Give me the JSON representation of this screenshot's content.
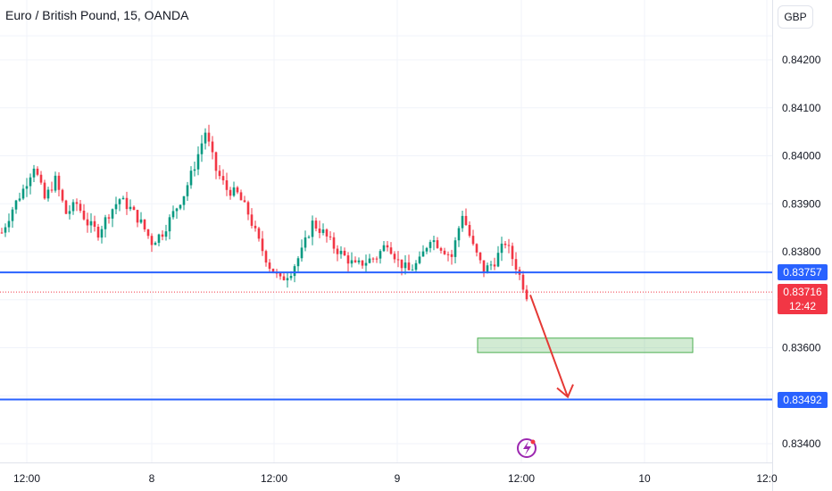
{
  "header": {
    "title": "Euro / British Pound, 15, OANDA",
    "currency": "GBP"
  },
  "chart_data": {
    "type": "candlestick",
    "y_tick_labels": [
      "0.84200",
      "0.84100",
      "0.84000",
      "0.83900",
      "0.83800",
      "0.83600",
      "0.83400"
    ],
    "y_ticks": [
      0.842,
      0.841,
      0.84,
      0.839,
      0.838,
      0.836,
      0.834
    ],
    "x_tick_labels": [
      "12:00",
      "8",
      "12:00",
      "9",
      "12:00",
      "10",
      "12:0"
    ],
    "ylim": [
      0.833,
      0.843
    ],
    "price_path": [
      0.8384,
      0.8389,
      0.8393,
      0.8398,
      0.8391,
      0.8395,
      0.8388,
      0.839,
      0.8386,
      0.8384,
      0.8388,
      0.8391,
      0.8389,
      0.8386,
      0.8382,
      0.8384,
      0.8388,
      0.8392,
      0.8398,
      0.8405,
      0.8397,
      0.8393,
      0.8392,
      0.8388,
      0.8382,
      0.8377,
      0.8374,
      0.8376,
      0.838,
      0.8386,
      0.8384,
      0.8381,
      0.8379,
      0.8377,
      0.8378,
      0.8379,
      0.8382,
      0.8378,
      0.8376,
      0.8378,
      0.8383,
      0.8381,
      0.8379,
      0.8388,
      0.8381,
      0.8376,
      0.8378,
      0.8382,
      0.8377,
      0.8371
    ],
    "levels": [
      {
        "value": "0.83757",
        "color": "#2962ff"
      },
      {
        "value": "0.83492",
        "color": "#2962ff"
      }
    ],
    "current_price": {
      "value": "0.83716",
      "countdown": "12:42",
      "color": "#f23645"
    },
    "target_zone": {
      "low": 0.8359,
      "high": 0.8362,
      "color": "#4caf50"
    },
    "projection_arrow": {
      "from_price": 0.8371,
      "to_price": 0.8349,
      "color": "#e53935"
    },
    "up_color": "#089981",
    "down_color": "#f23645"
  }
}
